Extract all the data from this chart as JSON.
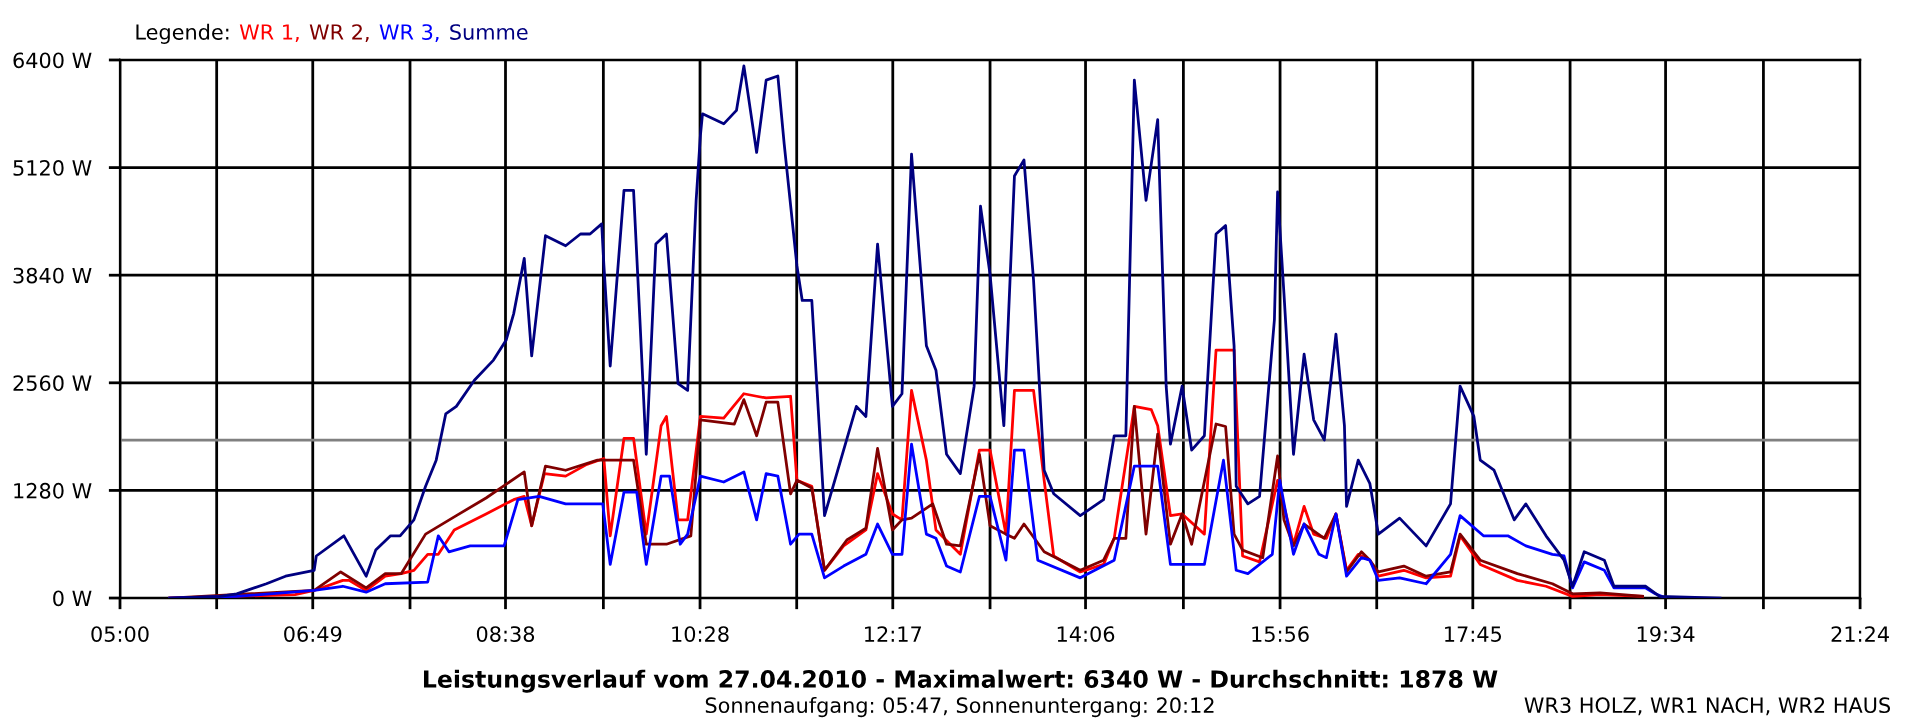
{
  "chart_data": {
    "type": "line",
    "title": "Leistungsverlauf vom 27.04.2010 - Maximalwert: 6340 W - Durchschnitt: 1878 W",
    "subtitle": "Sonnenaufgang: 05:47, Sonnenuntergang: 20:12",
    "legend_title": "Legende:",
    "annotations": [
      "WR3 HOLZ, WR1 NACH, WR2 HAUS"
    ],
    "legend": "top left",
    "grid": true,
    "marker": "none",
    "line_style": "solid",
    "xlim": [
      5,
      21.4
    ],
    "ylim": [
      0,
      6400
    ],
    "xticks": [
      {
        "value": 5,
        "label": "05:00"
      },
      {
        "value": 5.9111,
        "label": null
      },
      {
        "value": 6.8167,
        "label": "06:49"
      },
      {
        "value": 7.7333,
        "label": null
      },
      {
        "value": 8.6333,
        "label": "08:38"
      },
      {
        "value": 9.5556,
        "label": null
      },
      {
        "value": 10.4667,
        "label": "10:28"
      },
      {
        "value": 11.3778,
        "label": null
      },
      {
        "value": 12.2833,
        "label": "12:17"
      },
      {
        "value": 13.2,
        "label": null
      },
      {
        "value": 14.1,
        "label": "14:06"
      },
      {
        "value": 15.0222,
        "label": null
      },
      {
        "value": 15.9333,
        "label": "15:56"
      },
      {
        "value": 16.8444,
        "label": null
      },
      {
        "value": 17.75,
        "label": "17:45"
      },
      {
        "value": 18.6667,
        "label": null
      },
      {
        "value": 19.5667,
        "label": "19:34"
      },
      {
        "value": 20.4889,
        "label": null
      },
      {
        "value": 21.4,
        "label": "21:24"
      }
    ],
    "yticks": [
      {
        "value": 0,
        "label": "0 W"
      },
      {
        "value": 1280,
        "label": "1280 W"
      },
      {
        "value": 2560,
        "label": "2560 W"
      },
      {
        "value": 3840,
        "label": "3840 W"
      },
      {
        "value": 5120,
        "label": "5120 W"
      },
      {
        "value": 6400,
        "label": "6400 W"
      }
    ],
    "ref_lines": [
      {
        "axis": "y",
        "value": 1878,
        "color": "#808080"
      }
    ],
    "series": [
      {
        "name": "WR 1,",
        "color": "#ff0000",
        "x": [
          5.47,
          6.65,
          6.83,
          7.1,
          7.16,
          7.32,
          7.5,
          7.65,
          7.77,
          7.9,
          8.0,
          8.15,
          8.45,
          8.71,
          8.81,
          8.88,
          9.0,
          9.2,
          9.4,
          9.56,
          9.62,
          9.75,
          9.84,
          9.96,
          10.1,
          10.15,
          10.26,
          10.35,
          10.47,
          10.69,
          10.88,
          11.0,
          11.09,
          11.32,
          11.38,
          11.52,
          11.64,
          11.82,
          12.03,
          12.14,
          12.28,
          12.37,
          12.46,
          12.6,
          12.69,
          12.92,
          13.1,
          13.2,
          13.35,
          13.43,
          13.61,
          13.71,
          13.8,
          14.05,
          14.27,
          14.37,
          14.56,
          14.72,
          14.78,
          14.9,
          15.01,
          15.22,
          15.33,
          15.5,
          15.58,
          15.74,
          15.91,
          16.06,
          16.16,
          16.25,
          16.37,
          16.46,
          16.56,
          16.67,
          16.78,
          16.86,
          17.1,
          17.31,
          17.54,
          17.63,
          17.82,
          18.17,
          18.44,
          18.69,
          18.95,
          19.35
        ],
        "values": [
          0,
          40,
          90,
          210,
          210,
          90,
          260,
          290,
          330,
          520,
          520,
          810,
          1000,
          1170,
          1210,
          860,
          1480,
          1450,
          1590,
          1660,
          740,
          1900,
          1900,
          760,
          2050,
          2160,
          930,
          930,
          2160,
          2140,
          2430,
          2400,
          2380,
          2400,
          1400,
          1330,
          330,
          620,
          810,
          1480,
          1000,
          930,
          2470,
          1640,
          810,
          520,
          1760,
          1760,
          760,
          2470,
          2470,
          1400,
          500,
          310,
          400,
          710,
          2280,
          2240,
          2050,
          980,
          1000,
          760,
          2950,
          2950,
          500,
          430,
          1400,
          640,
          1090,
          760,
          710,
          1000,
          330,
          520,
          450,
          260,
          330,
          240,
          260,
          740,
          400,
          210,
          140,
          20,
          40,
          20
        ]
      },
      {
        "name": "WR 2,",
        "color": "#800000",
        "x": [
          5.47,
          6.83,
          7.08,
          7.32,
          7.5,
          7.65,
          7.88,
          8.17,
          8.45,
          8.81,
          8.88,
          9.01,
          9.2,
          9.5,
          9.84,
          9.96,
          10.15,
          10.38,
          10.47,
          10.79,
          10.88,
          11.0,
          11.09,
          11.2,
          11.32,
          11.38,
          11.52,
          11.64,
          11.85,
          12.03,
          12.14,
          12.28,
          12.37,
          12.46,
          12.66,
          12.79,
          12.92,
          13.1,
          13.2,
          13.35,
          13.43,
          13.52,
          13.71,
          14.05,
          14.27,
          14.37,
          14.48,
          14.56,
          14.67,
          14.78,
          14.9,
          15.01,
          15.1,
          15.33,
          15.42,
          15.5,
          15.58,
          15.77,
          15.91,
          15.97,
          16.06,
          16.16,
          16.35,
          16.46,
          16.56,
          16.7,
          16.78,
          16.86,
          17.1,
          17.31,
          17.54,
          17.63,
          17.82,
          18.17,
          18.5,
          18.69,
          18.95,
          19.35
        ],
        "values": [
          0,
          90,
          310,
          120,
          290,
          290,
          760,
          980,
          1190,
          1500,
          860,
          1570,
          1520,
          1640,
          1640,
          640,
          640,
          740,
          2120,
          2070,
          2360,
          1930,
          2330,
          2330,
          1240,
          1400,
          1310,
          330,
          690,
          830,
          1780,
          810,
          930,
          950,
          1120,
          640,
          620,
          1710,
          860,
          760,
          710,
          880,
          550,
          330,
          450,
          710,
          710,
          2280,
          760,
          1950,
          640,
          1000,
          640,
          2070,
          2040,
          760,
          570,
          480,
          1690,
          930,
          620,
          880,
          710,
          1000,
          310,
          550,
          450,
          310,
          380,
          260,
          310,
          760,
          450,
          290,
          170,
          50,
          60,
          20
        ]
      },
      {
        "name": "WR 3,",
        "color": "#0000ff",
        "x": [
          5.47,
          6.1,
          6.83,
          7.1,
          7.32,
          7.5,
          7.9,
          8.0,
          8.1,
          8.3,
          8.62,
          8.75,
          8.95,
          9.2,
          9.55,
          9.62,
          9.75,
          9.87,
          9.96,
          10.1,
          10.18,
          10.28,
          10.35,
          10.47,
          10.69,
          10.88,
          11.0,
          11.09,
          11.2,
          11.32,
          11.4,
          11.52,
          11.64,
          11.82,
          12.03,
          12.14,
          12.28,
          12.37,
          12.46,
          12.6,
          12.69,
          12.79,
          12.92,
          13.1,
          13.2,
          13.35,
          13.43,
          13.52,
          13.65,
          14.05,
          14.37,
          14.56,
          14.78,
          14.9,
          15.22,
          15.4,
          15.52,
          15.63,
          15.86,
          15.93,
          16.06,
          16.16,
          16.3,
          16.37,
          16.46,
          16.56,
          16.7,
          16.78,
          16.86,
          17.06,
          17.31,
          17.54,
          17.63,
          17.85,
          18.08,
          18.25,
          18.5,
          18.61,
          18.69,
          18.8,
          18.99,
          19.08,
          19.38,
          19.47,
          19.57
        ],
        "values": [
          0,
          20,
          90,
          140,
          70,
          170,
          190,
          740,
          550,
          620,
          620,
          1170,
          1210,
          1120,
          1120,
          400,
          1260,
          1260,
          400,
          1450,
          1450,
          640,
          760,
          1450,
          1380,
          1500,
          930,
          1480,
          1450,
          640,
          760,
          760,
          240,
          380,
          520,
          880,
          520,
          520,
          1830,
          760,
          710,
          380,
          310,
          1210,
          1210,
          450,
          1760,
          1760,
          450,
          240,
          450,
          1570,
          1570,
          400,
          400,
          1640,
          330,
          290,
          520,
          1400,
          520,
          880,
          520,
          480,
          1000,
          260,
          480,
          450,
          210,
          240,
          170,
          520,
          980,
          740,
          740,
          620,
          520,
          500,
          120,
          430,
          330,
          120,
          120,
          50,
          0
        ]
      },
      {
        "name": "Summe",
        "color": "#000080",
        "x": [
          5.47,
          5.94,
          6.1,
          6.38,
          6.56,
          6.83,
          6.85,
          7.11,
          7.32,
          7.41,
          7.55,
          7.64,
          7.77,
          7.88,
          7.98,
          8.07,
          8.17,
          8.34,
          8.52,
          8.64,
          8.71,
          8.81,
          8.88,
          9.01,
          9.2,
          9.34,
          9.43,
          9.54,
          9.56,
          9.62,
          9.75,
          9.84,
          9.9,
          9.96,
          10.05,
          10.15,
          10.26,
          10.35,
          10.43,
          10.47,
          10.49,
          10.69,
          10.81,
          10.88,
          11.0,
          11.09,
          11.2,
          11.26,
          11.38,
          11.43,
          11.52,
          11.64,
          11.94,
          12.03,
          12.14,
          12.28,
          12.37,
          12.46,
          12.6,
          12.69,
          12.79,
          12.92,
          13.05,
          13.11,
          13.2,
          13.33,
          13.43,
          13.52,
          13.61,
          13.71,
          13.8,
          14.05,
          14.27,
          14.37,
          14.48,
          14.56,
          14.67,
          14.78,
          14.86,
          14.9,
          15.01,
          15.1,
          15.22,
          15.33,
          15.42,
          15.5,
          15.52,
          15.63,
          15.74,
          15.88,
          15.91,
          15.97,
          16.06,
          16.16,
          16.25,
          16.35,
          16.46,
          16.54,
          16.56,
          16.67,
          16.78,
          16.86,
          17.06,
          17.31,
          17.54,
          17.63,
          17.76,
          17.82,
          17.95,
          18.14,
          18.25,
          18.44,
          18.61,
          18.69,
          18.8,
          18.99,
          19.08,
          19.38,
          19.51,
          20.08
        ],
        "values": [
          0,
          20,
          50,
          170,
          260,
          330,
          500,
          740,
          260,
          570,
          740,
          740,
          930,
          1330,
          1640,
          2190,
          2280,
          2590,
          2830,
          3070,
          3380,
          4040,
          2880,
          4310,
          4190,
          4330,
          4330,
          4450,
          3970,
          2760,
          4850,
          4850,
          3310,
          1710,
          4210,
          4330,
          2550,
          2470,
          4730,
          5500,
          5760,
          5640,
          5800,
          6330,
          5300,
          6160,
          6210,
          5400,
          3950,
          3540,
          3540,
          980,
          2280,
          2160,
          4210,
          2280,
          2430,
          5280,
          3000,
          2710,
          1710,
          1480,
          2520,
          4660,
          3850,
          2050,
          5020,
          5210,
          3780,
          1520,
          1240,
          980,
          1170,
          1930,
          1930,
          6160,
          4730,
          5690,
          2520,
          1830,
          2520,
          1760,
          1930,
          4330,
          4430,
          3000,
          1330,
          1120,
          1210,
          3310,
          4830,
          3620,
          1710,
          2900,
          2120,
          1880,
          3140,
          2050,
          1090,
          1640,
          1360,
          760,
          950,
          620,
          1120,
          2520,
          2160,
          1640,
          1520,
          930,
          1120,
          740,
          450,
          140,
          550,
          450,
          140,
          140,
          20,
          0
        ]
      }
    ]
  }
}
